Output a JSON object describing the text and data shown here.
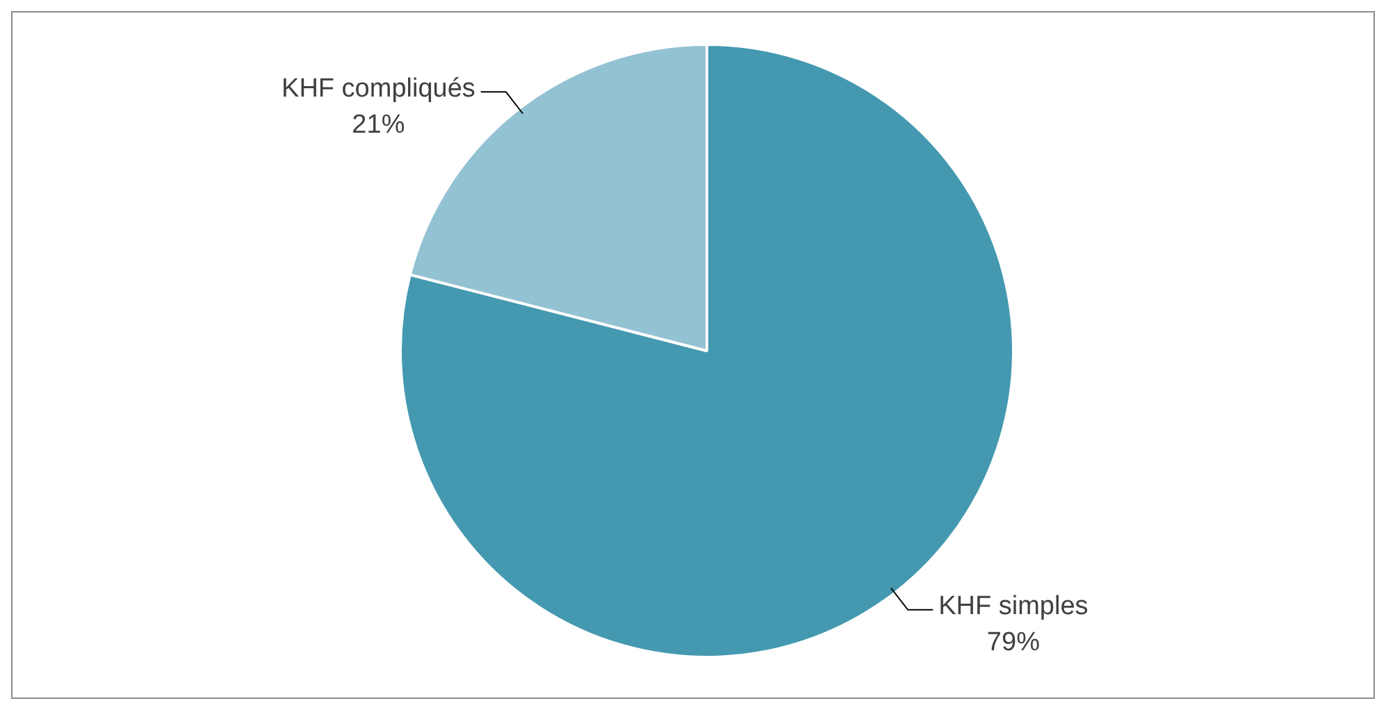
{
  "chart_data": {
    "type": "pie",
    "categories": [
      "KHF simples",
      "KHF compliqués"
    ],
    "values": [
      79,
      21
    ],
    "colors": [
      "#4499b0",
      "#93c2d3"
    ],
    "value_labels": [
      "79%",
      "21%"
    ],
    "legend": false
  }
}
